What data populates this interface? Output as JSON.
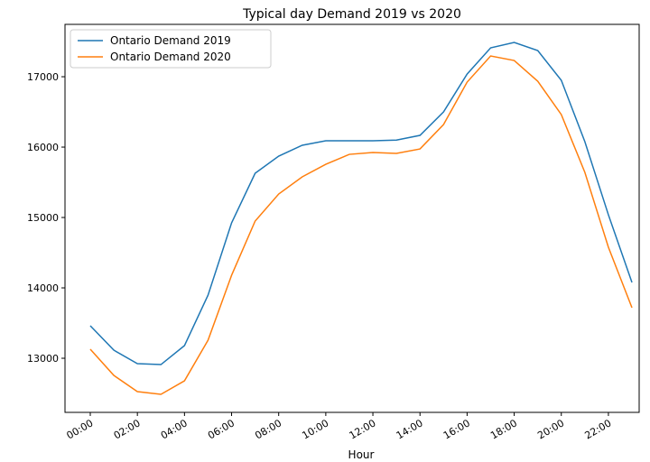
{
  "chart_data": {
    "type": "line",
    "title": "Typical day Demand 2019 vs 2020",
    "xlabel": "Hour",
    "categories": [
      "00:00",
      null,
      "02:00",
      null,
      "04:00",
      null,
      "06:00",
      null,
      "08:00",
      null,
      "10:00",
      null,
      "12:00",
      null,
      "14:00",
      null,
      "16:00",
      null,
      "18:00",
      null,
      "20:00",
      null,
      "22:00",
      null
    ],
    "series": [
      {
        "name": "Ontario Demand 2019",
        "color": "#1f77b4",
        "values": [
          13462,
          13115,
          12923,
          12910,
          13180,
          13897,
          14923,
          15628,
          15872,
          16026,
          16090,
          16090,
          16090,
          16100,
          16167,
          16500,
          17038,
          17410,
          17487,
          17372,
          16949,
          16077,
          15038,
          14077
        ]
      },
      {
        "name": "Ontario Demand 2020",
        "color": "#ff7f0e",
        "values": [
          13128,
          12756,
          12526,
          12487,
          12679,
          13256,
          14179,
          14949,
          15333,
          15577,
          15756,
          15897,
          15923,
          15910,
          15974,
          16321,
          16923,
          17295,
          17231,
          16936,
          16462,
          15641,
          14577,
          13718
        ]
      }
    ],
    "ylim": [
      12231,
      17744
    ],
    "yticks": [
      13000,
      14000,
      15000,
      16000,
      17000
    ],
    "grid": false,
    "legend": "upper left"
  }
}
